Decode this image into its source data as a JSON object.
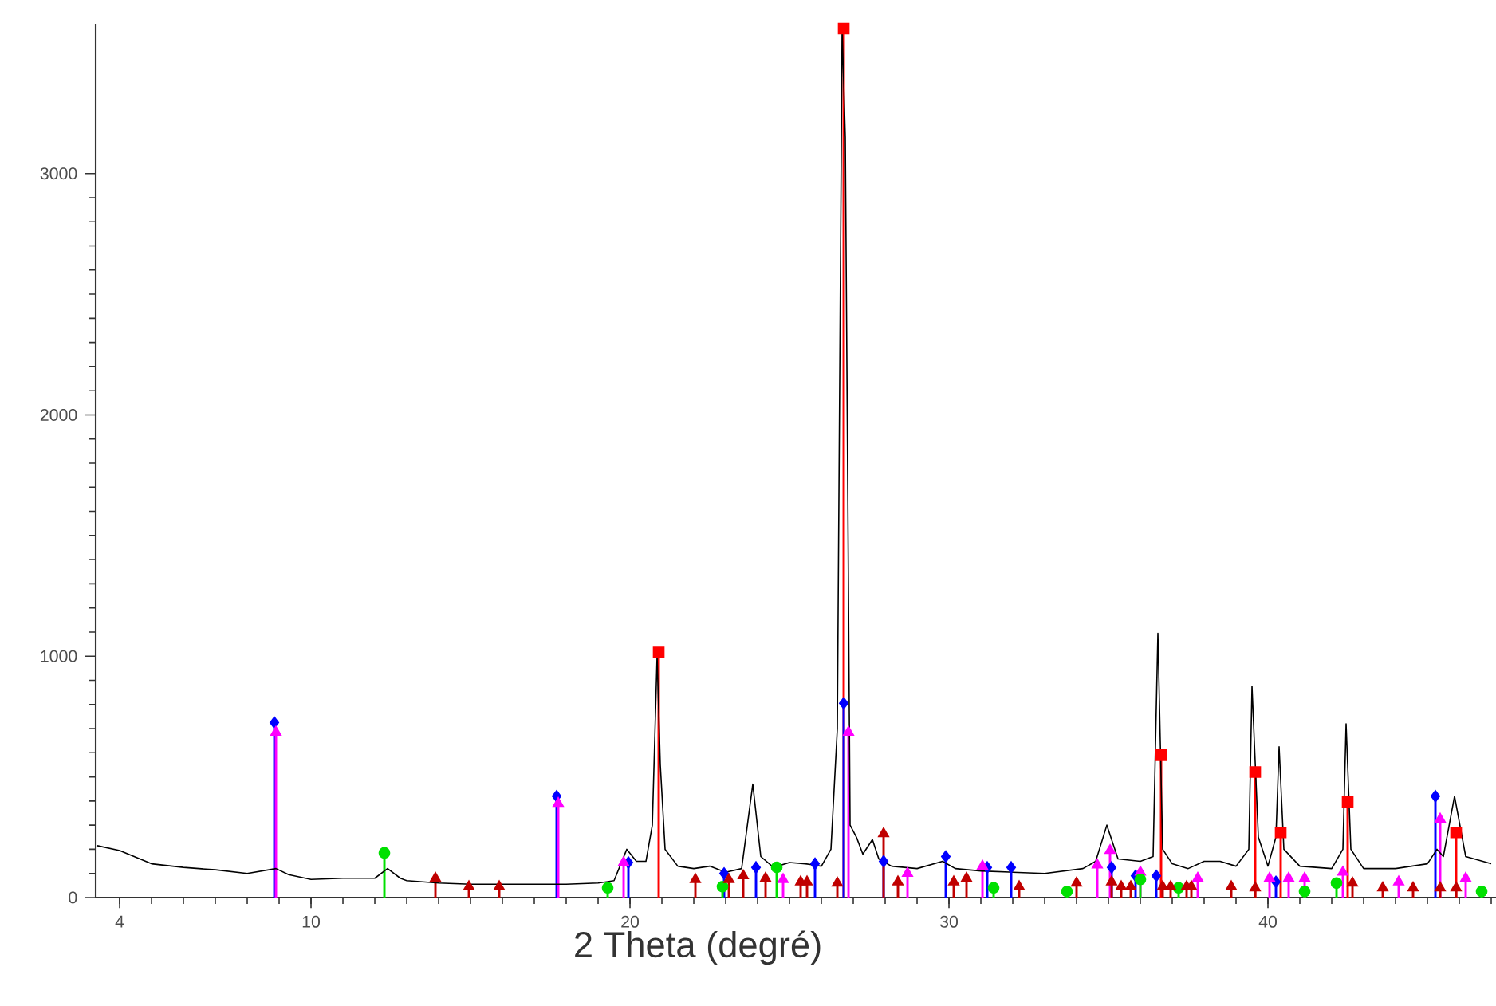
{
  "chart_data": {
    "type": "lollipop",
    "xlabel": "2 Theta (degré)",
    "xlim": [
      3.25,
      47.15
    ],
    "ylim": [
      0,
      3620
    ],
    "xticks": [
      4,
      10,
      20,
      30,
      40
    ],
    "yticks": [
      0,
      1000,
      2000,
      3000
    ],
    "series": [
      {
        "type": "line",
        "color": "#000000",
        "marker": "none",
        "x": [
          3.3,
          4,
          5,
          6,
          7,
          8,
          8.9,
          9.3,
          10,
          11,
          12,
          12.4,
          12.8,
          13,
          14,
          15,
          16,
          17,
          18,
          19,
          19.5,
          19.9,
          20.2,
          20.5,
          20.7,
          20.85,
          20.95,
          21.1,
          21.5,
          22,
          22.5,
          23,
          23.5,
          23.85,
          24.1,
          24.5,
          25,
          25.5,
          26,
          26.3,
          26.5,
          26.65,
          26.75,
          26.9,
          27.1,
          27.3,
          27.6,
          27.8,
          28.2,
          29,
          29.8,
          30.2,
          31,
          32,
          33,
          34.2,
          34.6,
          34.95,
          35.3,
          36,
          36.4,
          36.55,
          36.7,
          37,
          37.5,
          38,
          38.5,
          39,
          39.4,
          39.5,
          39.7,
          40,
          40.25,
          40.35,
          40.5,
          41,
          41.5,
          42,
          42.35,
          42.45,
          42.6,
          43,
          44,
          45,
          45.3,
          45.5,
          45.85,
          46.2,
          47
        ],
        "values": [
          215,
          195,
          140,
          125,
          115,
          100,
          120,
          95,
          75,
          80,
          80,
          120,
          80,
          70,
          60,
          55,
          55,
          55,
          55,
          60,
          70,
          200,
          150,
          150,
          300,
          1000,
          550,
          200,
          130,
          120,
          130,
          105,
          120,
          470,
          170,
          125,
          145,
          140,
          130,
          200,
          700,
          3600,
          3150,
          300,
          250,
          180,
          240,
          160,
          130,
          120,
          150,
          120,
          110,
          105,
          100,
          120,
          150,
          300,
          160,
          150,
          170,
          1095,
          200,
          140,
          120,
          150,
          150,
          130,
          200,
          875,
          250,
          130,
          250,
          625,
          200,
          130,
          125,
          120,
          200,
          720,
          200,
          120,
          120,
          140,
          200,
          170,
          420,
          170,
          140
        ]
      },
      {
        "color": "#ff0000",
        "marker": "square",
        "x": [
          20.9,
          26.7,
          36.65,
          39.6,
          40.4,
          42.5,
          45.9
        ],
        "values": [
          1015,
          3600,
          590,
          520,
          270,
          395,
          270
        ]
      },
      {
        "color": "#0000ff",
        "marker": "diamond",
        "x": [
          8.85,
          17.7,
          19.95,
          22.95,
          23.95,
          25.8,
          26.7,
          27.95,
          29.9,
          31.2,
          31.95,
          35.1,
          35.85,
          36.5,
          40.25,
          45.25
        ],
        "values": [
          725,
          420,
          145,
          100,
          125,
          140,
          805,
          150,
          170,
          125,
          125,
          125,
          90,
          90,
          65,
          420
        ]
      },
      {
        "color": "#ff00ff",
        "marker": "triangle",
        "x": [
          8.9,
          17.75,
          19.8,
          24.8,
          26.85,
          28.7,
          31.05,
          34.65,
          35.05,
          36.0,
          37.8,
          40.05,
          40.65,
          41.15,
          42.35,
          44.1,
          45.4,
          46.2
        ],
        "values": [
          685,
          390,
          145,
          75,
          685,
          100,
          130,
          135,
          195,
          105,
          80,
          80,
          80,
          80,
          105,
          65,
          325,
          80
        ]
      },
      {
        "color": "#00e000",
        "marker": "circle",
        "x": [
          12.3,
          19.3,
          22.9,
          24.6,
          31.4,
          33.7,
          36.0,
          37.2,
          41.15,
          42.15,
          46.7
        ],
        "values": [
          185,
          40,
          45,
          125,
          40,
          25,
          75,
          40,
          25,
          60,
          25
        ]
      },
      {
        "color": "#c00000",
        "marker": "triangle",
        "x": [
          13.9,
          14.95,
          15.9,
          22.05,
          23.1,
          23.55,
          24.25,
          25.35,
          25.55,
          26.5,
          27.95,
          28.4,
          30.15,
          30.55,
          32.2,
          34.0,
          35.1,
          35.4,
          35.7,
          36.7,
          36.95,
          37.45,
          37.6,
          38.85,
          39.6,
          42.65,
          43.6,
          44.55,
          45.4,
          45.9
        ],
        "values": [
          80,
          45,
          45,
          75,
          75,
          90,
          80,
          65,
          65,
          60,
          265,
          65,
          65,
          80,
          45,
          60,
          65,
          45,
          45,
          45,
          45,
          45,
          45,
          45,
          40,
          60,
          40,
          40,
          40,
          40
        ]
      }
    ]
  }
}
